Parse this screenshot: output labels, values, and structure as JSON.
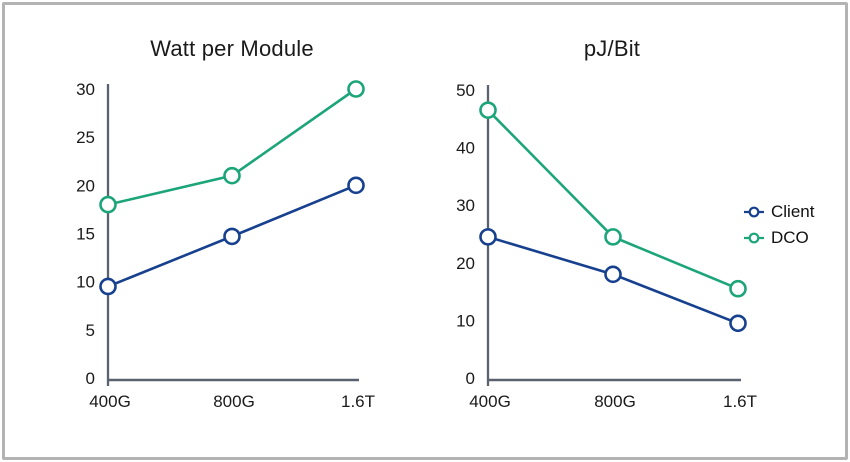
{
  "chart_data": [
    {
      "type": "line",
      "title": "Watt per Module",
      "categories": [
        "400G",
        "800G",
        "1.6T"
      ],
      "series": [
        {
          "name": "Client",
          "color": "#17418f",
          "values": [
            9.5,
            14.7,
            20
          ]
        },
        {
          "name": "DCO",
          "color": "#1da57a",
          "values": [
            18,
            21,
            30
          ]
        }
      ],
      "xlabel": "",
      "ylabel": "",
      "ylim": [
        0,
        30
      ],
      "yticks": [
        0,
        5,
        10,
        15,
        20,
        25,
        30
      ],
      "grid": false,
      "marker": "open-circle"
    },
    {
      "type": "line",
      "title": "pJ/Bit",
      "categories": [
        "400G",
        "800G",
        "1.6T"
      ],
      "series": [
        {
          "name": "Client",
          "color": "#17418f",
          "values": [
            24.5,
            18,
            9.5
          ]
        },
        {
          "name": "DCO",
          "color": "#1da57a",
          "values": [
            46.5,
            24.5,
            15.5
          ]
        }
      ],
      "xlabel": "",
      "ylabel": "",
      "ylim": [
        0,
        50
      ],
      "yticks": [
        0,
        10,
        20,
        30,
        40,
        50
      ],
      "grid": false,
      "marker": "open-circle"
    }
  ],
  "legend": {
    "position": "right",
    "items": [
      {
        "label": "Client",
        "color": "#17418f"
      },
      {
        "label": "DCO",
        "color": "#1da57a"
      }
    ]
  },
  "style": {
    "axis_color": "#5a6270",
    "text_color": "#1a1a1a",
    "frame_border_color": "#b3b3b3",
    "background": "#ffffff",
    "marker_fill": "#ffffff"
  }
}
